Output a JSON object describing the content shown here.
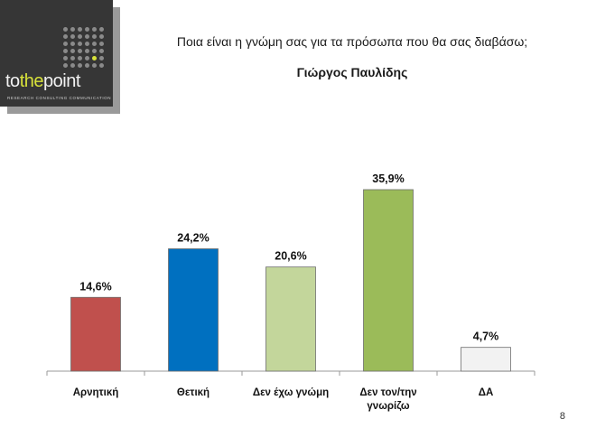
{
  "logo": {
    "word_prefix": "to",
    "word_accent": "the",
    "word_suffix": "point",
    "tagline": "RESEARCH  CONSULTING  COMMUNICATION",
    "accent_color": "#d8e23a"
  },
  "page": {
    "question": "Ποια είναι η γνώμη σας για τα πρόσωπα που θα σας διαβάσω;",
    "subtitle": "Γιώργος Παυλίδης",
    "page_number": "8"
  },
  "chart_data": {
    "type": "bar",
    "title": "Γιώργος Παυλίδης",
    "categories": [
      "Αρνητική",
      "Θετική",
      "Δεν έχω γνώμη",
      "Δεν τον/την γνωρίζω",
      "ΔΑ"
    ],
    "category_lines": [
      [
        "Αρνητική"
      ],
      [
        "Θετική"
      ],
      [
        "Δεν έχω γνώμη"
      ],
      [
        "Δεν τον/την",
        "γνωρίζω"
      ],
      [
        "ΔΑ"
      ]
    ],
    "values": [
      14.6,
      24.2,
      20.6,
      35.9,
      4.7
    ],
    "value_labels": [
      "14,6%",
      "24,2%",
      "20,6%",
      "35,9%",
      "4,7%"
    ],
    "colors": [
      "#c0504d",
      "#0070c0",
      "#c3d69b",
      "#9bbb59",
      "#f2f2f2"
    ],
    "ylim": [
      0,
      38
    ],
    "grid": false,
    "legend": "none"
  }
}
